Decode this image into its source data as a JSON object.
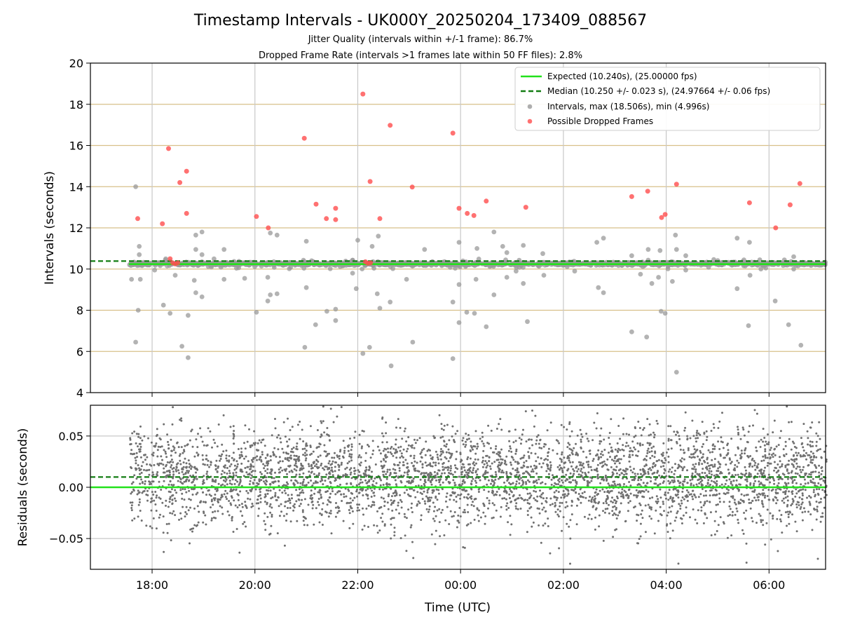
{
  "chart_data": [
    {
      "type": "scatter",
      "title": "Timestamp Intervals - UK000Y_20250204_173409_088567",
      "subtitle_1": "Jitter Quality (intervals within +/-1 frame): 86.7%",
      "subtitle_2": "Dropped Frame Rate (intervals >1 frames late within 50 FF files): 2.8%",
      "xlabel": "",
      "ylabel": "Intervals (seconds)",
      "ylim": [
        4,
        20
      ],
      "yticks": [
        "4",
        "6",
        "8",
        "10",
        "12",
        "14",
        "16",
        "18",
        "20"
      ],
      "grid": true,
      "legend_position": "top-right",
      "legend": {
        "expected": "Expected (10.240s), (25.00000 fps)",
        "median": "Median (10.250 +/- 0.023 s), (24.97664 +/- 0.06 fps)",
        "intervals": "Intervals, max (18.506s), min (4.996s)",
        "dropped": "Possible Dropped Frames"
      },
      "expected_value": 10.24,
      "median_value": 10.25,
      "colors": {
        "expected": "#22e11b",
        "median": "#137d13",
        "intervals": "#9a9a9a",
        "dropped": "#ff4d4d",
        "hgrid": "#d8c08a",
        "vgrid": "#c8c8c8"
      },
      "dropped_frames": [
        {
          "x": 17.72,
          "y": 12.45
        },
        {
          "x": 18.2,
          "y": 12.2
        },
        {
          "x": 18.32,
          "y": 15.85
        },
        {
          "x": 18.54,
          "y": 14.2
        },
        {
          "x": 18.67,
          "y": 14.75
        },
        {
          "x": 18.67,
          "y": 12.7
        },
        {
          "x": 20.03,
          "y": 12.55
        },
        {
          "x": 20.26,
          "y": 12.0
        },
        {
          "x": 20.96,
          "y": 16.35
        },
        {
          "x": 21.19,
          "y": 13.15
        },
        {
          "x": 21.39,
          "y": 12.45
        },
        {
          "x": 21.57,
          "y": 12.4
        },
        {
          "x": 21.57,
          "y": 12.95
        },
        {
          "x": 22.1,
          "y": 18.5
        },
        {
          "x": 22.24,
          "y": 14.25
        },
        {
          "x": 22.43,
          "y": 12.45
        },
        {
          "x": 22.63,
          "y": 16.98
        },
        {
          "x": 23.06,
          "y": 13.98
        },
        {
          "x": 23.85,
          "y": 16.6
        },
        {
          "x": 23.97,
          "y": 12.95
        },
        {
          "x": 24.13,
          "y": 12.7
        },
        {
          "x": 24.26,
          "y": 12.6
        },
        {
          "x": 24.5,
          "y": 13.3
        },
        {
          "x": 25.27,
          "y": 13.0
        },
        {
          "x": 27.33,
          "y": 13.52
        },
        {
          "x": 27.64,
          "y": 13.78
        },
        {
          "x": 27.91,
          "y": 12.5
        },
        {
          "x": 27.98,
          "y": 12.65
        },
        {
          "x": 28.2,
          "y": 14.12
        },
        {
          "x": 29.62,
          "y": 13.22
        },
        {
          "x": 30.13,
          "y": 12.0
        },
        {
          "x": 30.41,
          "y": 13.12
        },
        {
          "x": 30.6,
          "y": 14.15
        },
        {
          "x": 18.35,
          "y": 10.5
        },
        {
          "x": 18.4,
          "y": 10.3
        },
        {
          "x": 18.45,
          "y": 10.25
        },
        {
          "x": 18.5,
          "y": 10.3
        },
        {
          "x": 22.15,
          "y": 10.35
        },
        {
          "x": 22.2,
          "y": 10.28
        },
        {
          "x": 22.25,
          "y": 10.3
        }
      ],
      "outlier_intervals": [
        {
          "x": 17.6,
          "y": 9.5
        },
        {
          "x": 17.68,
          "y": 14.0
        },
        {
          "x": 17.68,
          "y": 6.45
        },
        {
          "x": 17.73,
          "y": 8.0
        },
        {
          "x": 17.77,
          "y": 9.5
        },
        {
          "x": 17.75,
          "y": 11.1
        },
        {
          "x": 17.75,
          "y": 10.7
        },
        {
          "x": 18.05,
          "y": 9.95
        },
        {
          "x": 18.22,
          "y": 8.25
        },
        {
          "x": 18.35,
          "y": 7.85
        },
        {
          "x": 18.45,
          "y": 9.7
        },
        {
          "x": 18.58,
          "y": 6.25
        },
        {
          "x": 18.7,
          "y": 5.7
        },
        {
          "x": 18.7,
          "y": 7.75
        },
        {
          "x": 18.82,
          "y": 9.45
        },
        {
          "x": 18.85,
          "y": 11.65
        },
        {
          "x": 18.85,
          "y": 10.95
        },
        {
          "x": 18.85,
          "y": 8.85
        },
        {
          "x": 18.97,
          "y": 8.65
        },
        {
          "x": 18.97,
          "y": 11.8
        },
        {
          "x": 18.97,
          "y": 10.7
        },
        {
          "x": 19.4,
          "y": 9.5
        },
        {
          "x": 19.4,
          "y": 10.95
        },
        {
          "x": 19.8,
          "y": 9.55
        },
        {
          "x": 20.03,
          "y": 7.9
        },
        {
          "x": 20.25,
          "y": 8.45
        },
        {
          "x": 20.25,
          "y": 9.6
        },
        {
          "x": 20.3,
          "y": 11.75
        },
        {
          "x": 20.3,
          "y": 8.75
        },
        {
          "x": 20.43,
          "y": 8.8
        },
        {
          "x": 20.43,
          "y": 11.65
        },
        {
          "x": 20.97,
          "y": 6.2
        },
        {
          "x": 21.0,
          "y": 9.1
        },
        {
          "x": 21.0,
          "y": 11.35
        },
        {
          "x": 21.18,
          "y": 7.3
        },
        {
          "x": 21.4,
          "y": 7.95
        },
        {
          "x": 21.57,
          "y": 8.05
        },
        {
          "x": 21.57,
          "y": 7.5
        },
        {
          "x": 21.9,
          "y": 9.8
        },
        {
          "x": 21.97,
          "y": 9.05
        },
        {
          "x": 22.0,
          "y": 11.4
        },
        {
          "x": 22.1,
          "y": 5.9
        },
        {
          "x": 22.23,
          "y": 6.2
        },
        {
          "x": 22.28,
          "y": 11.1
        },
        {
          "x": 22.38,
          "y": 8.8
        },
        {
          "x": 22.4,
          "y": 11.6
        },
        {
          "x": 22.43,
          "y": 8.1
        },
        {
          "x": 22.63,
          "y": 8.4
        },
        {
          "x": 22.65,
          "y": 5.3
        },
        {
          "x": 22.95,
          "y": 9.5
        },
        {
          "x": 23.07,
          "y": 6.45
        },
        {
          "x": 23.3,
          "y": 10.95
        },
        {
          "x": 23.85,
          "y": 8.4
        },
        {
          "x": 23.85,
          "y": 5.65
        },
        {
          "x": 23.97,
          "y": 9.25
        },
        {
          "x": 23.97,
          "y": 11.3
        },
        {
          "x": 23.97,
          "y": 7.4
        },
        {
          "x": 24.12,
          "y": 7.9
        },
        {
          "x": 24.27,
          "y": 7.85
        },
        {
          "x": 24.3,
          "y": 9.5
        },
        {
          "x": 24.32,
          "y": 11.0
        },
        {
          "x": 24.5,
          "y": 7.2
        },
        {
          "x": 24.65,
          "y": 8.75
        },
        {
          "x": 24.65,
          "y": 11.8
        },
        {
          "x": 24.82,
          "y": 11.1
        },
        {
          "x": 24.9,
          "y": 10.8
        },
        {
          "x": 24.9,
          "y": 9.6
        },
        {
          "x": 25.08,
          "y": 9.9
        },
        {
          "x": 25.22,
          "y": 11.15
        },
        {
          "x": 25.22,
          "y": 9.3
        },
        {
          "x": 25.3,
          "y": 7.45
        },
        {
          "x": 25.6,
          "y": 10.75
        },
        {
          "x": 25.62,
          "y": 9.7
        },
        {
          "x": 26.22,
          "y": 9.9
        },
        {
          "x": 26.65,
          "y": 11.3
        },
        {
          "x": 26.68,
          "y": 9.1
        },
        {
          "x": 26.78,
          "y": 11.5
        },
        {
          "x": 26.78,
          "y": 8.85
        },
        {
          "x": 27.33,
          "y": 10.65
        },
        {
          "x": 27.33,
          "y": 6.95
        },
        {
          "x": 27.5,
          "y": 9.75
        },
        {
          "x": 27.62,
          "y": 6.7
        },
        {
          "x": 27.65,
          "y": 10.95
        },
        {
          "x": 27.72,
          "y": 9.3
        },
        {
          "x": 27.85,
          "y": 9.6
        },
        {
          "x": 27.88,
          "y": 10.9
        },
        {
          "x": 27.9,
          "y": 7.95
        },
        {
          "x": 27.98,
          "y": 7.85
        },
        {
          "x": 28.12,
          "y": 9.4
        },
        {
          "x": 28.18,
          "y": 11.65
        },
        {
          "x": 28.2,
          "y": 4.99
        },
        {
          "x": 28.2,
          "y": 10.95
        },
        {
          "x": 28.38,
          "y": 10.65
        },
        {
          "x": 28.38,
          "y": 9.95
        },
        {
          "x": 29.38,
          "y": 11.5
        },
        {
          "x": 29.38,
          "y": 9.05
        },
        {
          "x": 29.6,
          "y": 7.25
        },
        {
          "x": 29.62,
          "y": 11.3
        },
        {
          "x": 29.63,
          "y": 9.7
        },
        {
          "x": 29.82,
          "y": 10.45
        },
        {
          "x": 30.12,
          "y": 8.45
        },
        {
          "x": 30.38,
          "y": 7.3
        },
        {
          "x": 30.48,
          "y": 10.6
        },
        {
          "x": 30.48,
          "y": 10.0
        },
        {
          "x": 30.62,
          "y": 6.3
        }
      ],
      "x_extent": [
        17.55,
        31.1
      ]
    },
    {
      "type": "scatter",
      "xlabel": "Time (UTC)",
      "ylabel": "Residuals (seconds)",
      "xlim": [
        16.8,
        31.1
      ],
      "ylim": [
        -0.08,
        0.08
      ],
      "xticks": [
        {
          "value": 18,
          "label": "18:00"
        },
        {
          "value": 20,
          "label": "20:00"
        },
        {
          "value": 22,
          "label": "22:00"
        },
        {
          "value": 24,
          "label": "00:00"
        },
        {
          "value": 26,
          "label": "02:00"
        },
        {
          "value": 28,
          "label": "04:00"
        },
        {
          "value": 30,
          "label": "06:00"
        }
      ],
      "yticks": [
        {
          "value": 0.05,
          "label": "0.05"
        },
        {
          "value": 0.0,
          "label": "0.00"
        },
        {
          "value": -0.05,
          "label": "−0.05"
        }
      ],
      "expected_residual": 0.0,
      "median_residual": 0.01,
      "residual_spread_std": 0.024,
      "point_count": 4200,
      "colors": {
        "points": "#707070",
        "expected": "#22e11b",
        "median": "#137d13",
        "grid": "#c8c8c8"
      }
    }
  ]
}
